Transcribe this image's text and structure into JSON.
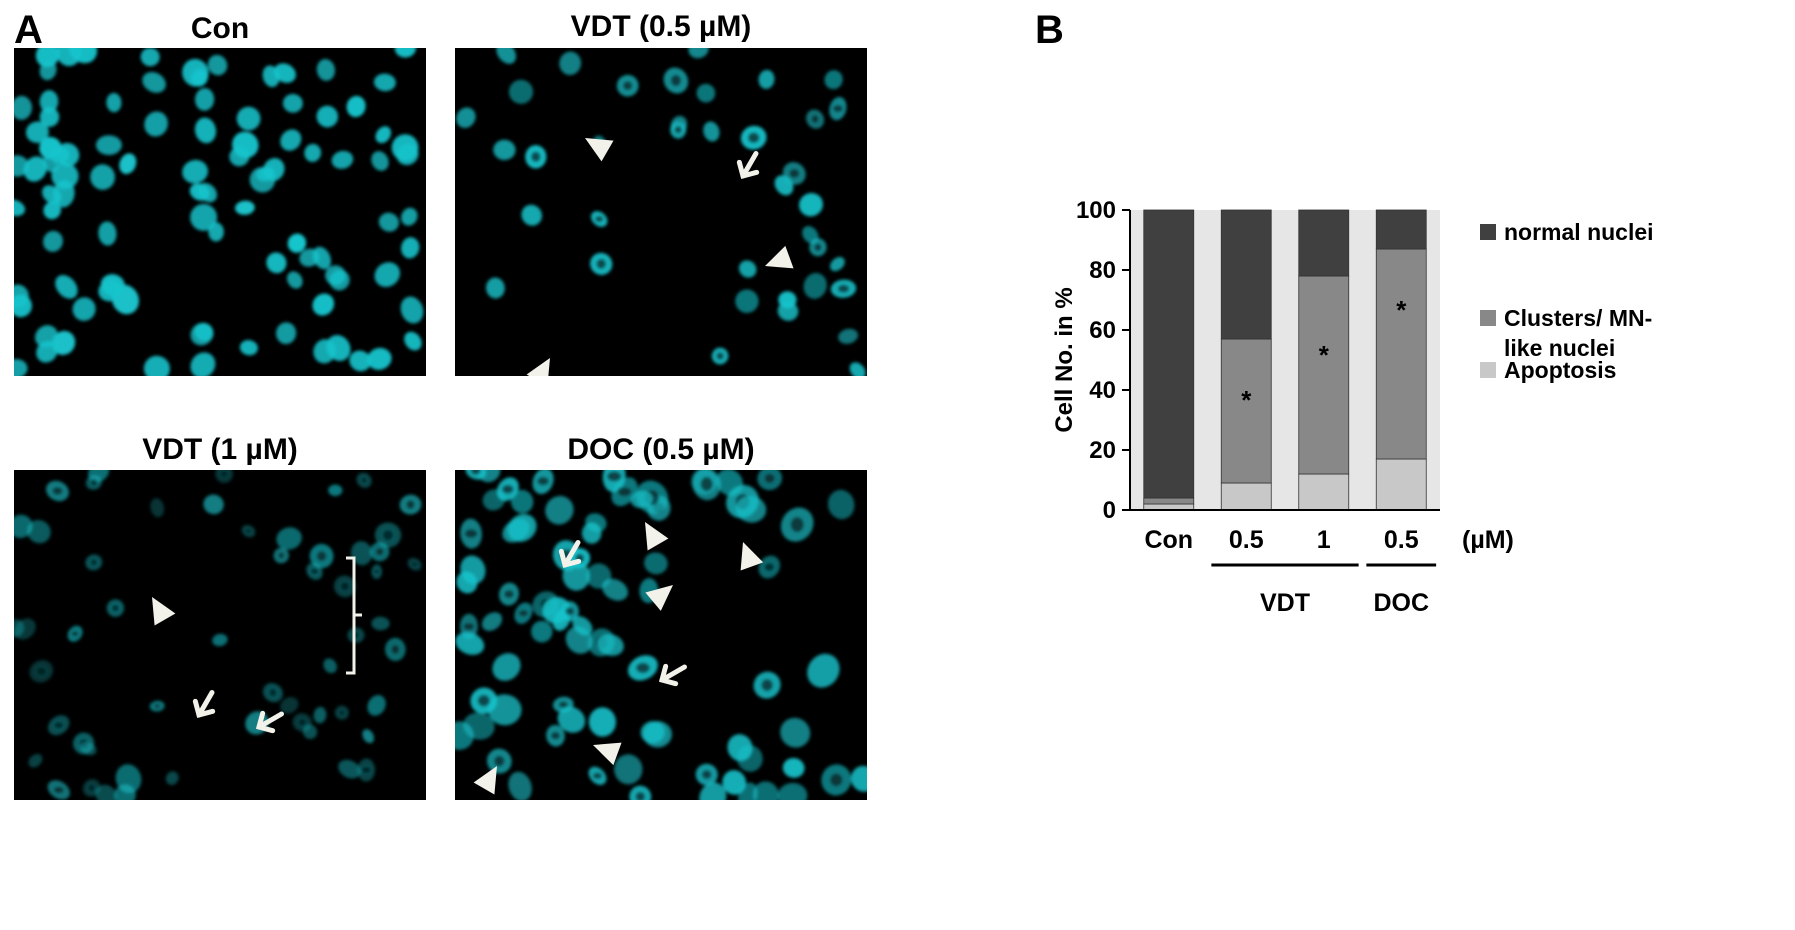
{
  "panel_labels": {
    "a": "A",
    "b": "B"
  },
  "micrographs": [
    {
      "id": "con",
      "title": "Con"
    },
    {
      "id": "vdt05",
      "title": "VDT (0.5 µM)"
    },
    {
      "id": "vdt1",
      "title": "VDT (1 µM)"
    },
    {
      "id": "doc05",
      "title": "DOC (0.5 µM)"
    }
  ],
  "colors": {
    "nuclei": "#19c4cc",
    "normal": "#404040",
    "clusters": "#888888",
    "apoptosis": "#c8c8c8",
    "band": "#e6e6e6"
  },
  "chart_data": {
    "type": "bar",
    "stacked": true,
    "categories": [
      "Con",
      "0.5",
      "1",
      "0.5"
    ],
    "groups": [
      {
        "label": "VDT",
        "categories": [
          1,
          2
        ]
      },
      {
        "label": "DOC",
        "categories": [
          3
        ]
      }
    ],
    "unit_label": "(µM)",
    "ylabel": "Cell  No. in %",
    "ylim": [
      0,
      100
    ],
    "yticks": [
      0,
      20,
      40,
      60,
      80,
      100
    ],
    "series": [
      {
        "name": "Apoptosis",
        "color": "#c8c8c8",
        "values": [
          2,
          9,
          12,
          17
        ]
      },
      {
        "name": "Clusters/ MN-like nuclei",
        "color": "#888888",
        "values": [
          2,
          48,
          66,
          70
        ]
      },
      {
        "name": "normal nuclei",
        "color": "#404040",
        "values": [
          96,
          43,
          22,
          13
        ]
      }
    ],
    "legend": [
      {
        "lines": [
          "normal nuclei"
        ],
        "color": "#404040"
      },
      {
        "lines": [
          "Clusters/ MN-",
          "like nuclei"
        ],
        "color": "#888888"
      },
      {
        "lines": [
          "Apoptosis"
        ],
        "color": "#c8c8c8"
      }
    ],
    "annotations": [
      {
        "category": 1,
        "y": 37,
        "text": "*"
      },
      {
        "category": 2,
        "y": 52,
        "text": "*"
      },
      {
        "category": 3,
        "y": 67,
        "text": "*"
      }
    ],
    "legend_position": "right"
  }
}
